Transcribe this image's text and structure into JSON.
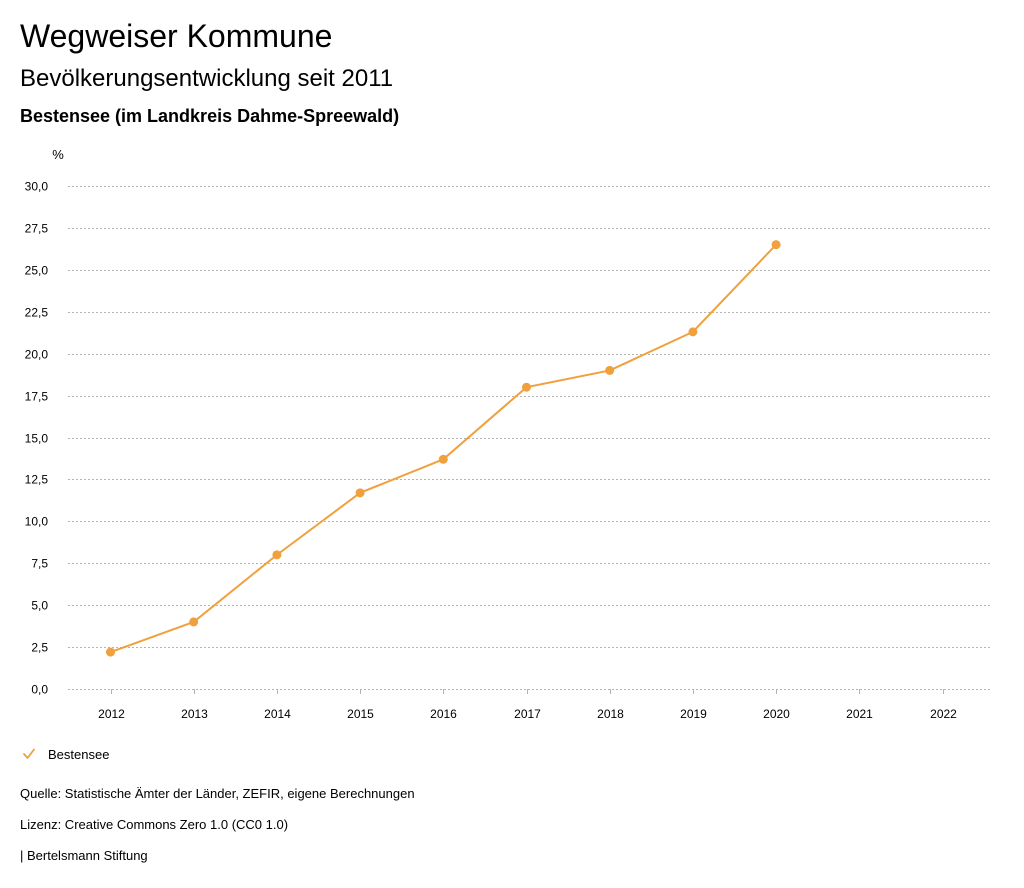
{
  "header": {
    "title": "Wegweiser Kommune",
    "subtitle": "Bevölkerungsentwicklung seit 2011",
    "region": "Bestensee (im Landkreis Dahme-Spreewald)"
  },
  "colors": {
    "series": "#f0a03c",
    "grid": "#b4b4b4",
    "axis": "#000000"
  },
  "chart_data": {
    "type": "line",
    "title": "Bevölkerungsentwicklung seit 2011",
    "ylabel": "%",
    "xlabel": "",
    "ylim": [
      0,
      30
    ],
    "yticks": [
      0,
      2.5,
      5,
      7.5,
      10,
      12.5,
      15,
      17.5,
      20,
      22.5,
      25,
      27.5,
      30
    ],
    "ytick_labels": [
      "0,0",
      "2,5",
      "5,0",
      "7,5",
      "10,0",
      "12,5",
      "15,0",
      "17,5",
      "20,0",
      "22,5",
      "25,0",
      "27,5",
      "30,0"
    ],
    "categories": [
      "2012",
      "2013",
      "2014",
      "2015",
      "2016",
      "2017",
      "2018",
      "2019",
      "2020",
      "2021",
      "2022"
    ],
    "grid": true,
    "legend_position": "bottom-left",
    "series": [
      {
        "name": "Bestensee",
        "values": [
          2.2,
          4.0,
          8.0,
          11.7,
          13.7,
          18.0,
          19.0,
          21.3,
          26.5,
          null,
          null
        ]
      }
    ]
  },
  "legend": {
    "label": "Bestensee",
    "icon": "check-icon"
  },
  "footer": {
    "source": "Quelle: Statistische Ämter der Länder, ZEFIR, eigene Berechnungen",
    "license": "Lizenz: Creative Commons Zero 1.0 (CC0 1.0)",
    "publisher": "| Bertelsmann Stiftung"
  }
}
